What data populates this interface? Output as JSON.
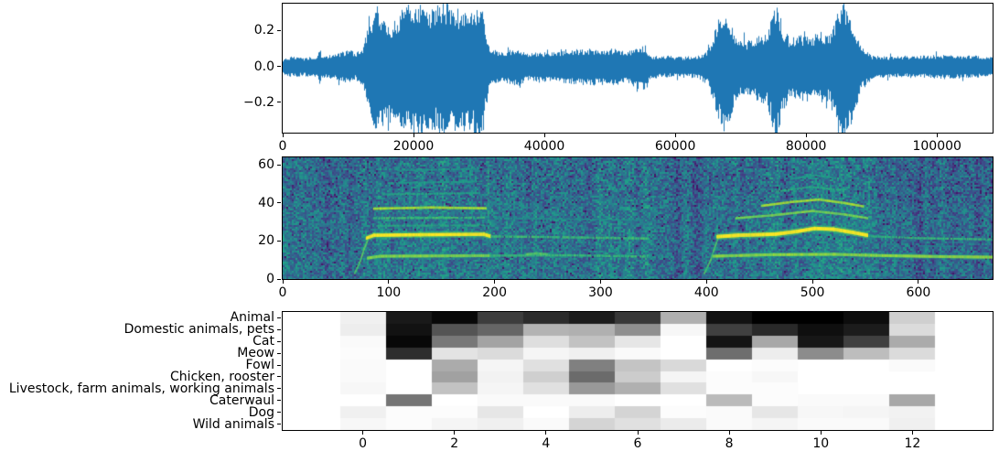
{
  "figure": {
    "background": "#ffffff"
  },
  "chart_data": [
    {
      "id": "waveform",
      "type": "line",
      "description": "audio waveform amplitude vs sample index",
      "line_color": "#1f77b4",
      "xlim": [
        0,
        108500
      ],
      "ylim": [
        -0.37,
        0.35
      ],
      "grid": false,
      "legend": null,
      "x_ticks": {
        "values": [
          0,
          20000,
          40000,
          60000,
          80000,
          100000
        ],
        "labels": [
          "0",
          "20000",
          "40000",
          "60000",
          "80000",
          "100000"
        ]
      },
      "y_ticks": {
        "values": [
          0.2,
          0.0,
          -0.2
        ],
        "labels": [
          "0.2",
          "0.0",
          "−0.2"
        ]
      },
      "envelope_points": [
        [
          0,
          0.035,
          0.04
        ],
        [
          1500,
          0.05,
          0.05
        ],
        [
          3000,
          0.04,
          0.045
        ],
        [
          5300,
          0.05,
          0.05
        ],
        [
          5600,
          0.1,
          0.11
        ],
        [
          5900,
          0.05,
          0.05
        ],
        [
          8000,
          0.055,
          0.06
        ],
        [
          10300,
          0.08,
          0.09
        ],
        [
          11000,
          0.06,
          0.06
        ],
        [
          12200,
          0.09,
          0.1
        ],
        [
          13200,
          0.2,
          0.24
        ],
        [
          14300,
          0.28,
          0.33
        ],
        [
          15500,
          0.22,
          0.26
        ],
        [
          16800,
          0.2,
          0.24
        ],
        [
          18000,
          0.26,
          0.28
        ],
        [
          19500,
          0.29,
          0.3
        ],
        [
          20800,
          0.3,
          0.35
        ],
        [
          22000,
          0.25,
          0.3
        ],
        [
          23500,
          0.28,
          0.28
        ],
        [
          25000,
          0.29,
          0.33
        ],
        [
          26500,
          0.26,
          0.3
        ],
        [
          28000,
          0.29,
          0.3
        ],
        [
          29500,
          0.27,
          0.32
        ],
        [
          30400,
          0.32,
          0.36
        ],
        [
          31000,
          0.15,
          0.18
        ],
        [
          31800,
          0.08,
          0.09
        ],
        [
          33500,
          0.065,
          0.07
        ],
        [
          36200,
          0.09,
          0.1
        ],
        [
          37000,
          0.06,
          0.065
        ],
        [
          39000,
          0.065,
          0.07
        ],
        [
          41500,
          0.07,
          0.075
        ],
        [
          44000,
          0.075,
          0.08
        ],
        [
          46500,
          0.085,
          0.09
        ],
        [
          48500,
          0.08,
          0.085
        ],
        [
          50500,
          0.085,
          0.09
        ],
        [
          52500,
          0.07,
          0.075
        ],
        [
          55300,
          0.1,
          0.12
        ],
        [
          56200,
          0.05,
          0.06
        ],
        [
          58500,
          0.05,
          0.05
        ],
        [
          61000,
          0.045,
          0.05
        ],
        [
          63500,
          0.05,
          0.055
        ],
        [
          65000,
          0.08,
          0.09
        ],
        [
          66300,
          0.2,
          0.22
        ],
        [
          67300,
          0.28,
          0.32
        ],
        [
          68400,
          0.2,
          0.24
        ],
        [
          69600,
          0.12,
          0.14
        ],
        [
          71000,
          0.12,
          0.13
        ],
        [
          72500,
          0.14,
          0.16
        ],
        [
          74000,
          0.16,
          0.18
        ],
        [
          75400,
          0.31,
          0.35
        ],
        [
          76400,
          0.18,
          0.22
        ],
        [
          77500,
          0.13,
          0.15
        ],
        [
          79000,
          0.15,
          0.17
        ],
        [
          80500,
          0.14,
          0.16
        ],
        [
          82000,
          0.16,
          0.17
        ],
        [
          83500,
          0.15,
          0.16
        ],
        [
          85400,
          0.31,
          0.36
        ],
        [
          86400,
          0.28,
          0.33
        ],
        [
          87500,
          0.15,
          0.2
        ],
        [
          88500,
          0.09,
          0.11
        ],
        [
          90000,
          0.05,
          0.06
        ],
        [
          93000,
          0.045,
          0.05
        ],
        [
          97000,
          0.05,
          0.05
        ],
        [
          101000,
          0.055,
          0.06
        ],
        [
          104500,
          0.05,
          0.055
        ],
        [
          108500,
          0.05,
          0.05
        ]
      ]
    },
    {
      "id": "spectrogram",
      "type": "heatmap",
      "description": "log-mel spectrogram, mel bands vs frame",
      "colormap": "viridis",
      "xlim": [
        0,
        670
      ],
      "ylim": [
        0,
        64
      ],
      "x_ticks": {
        "values": [
          0,
          100,
          200,
          300,
          400,
          500,
          600
        ],
        "labels": [
          "0",
          "100",
          "200",
          "300",
          "400",
          "500",
          "600"
        ]
      },
      "y_ticks": {
        "values": [
          0,
          20,
          40,
          60
        ],
        "labels": [
          "0",
          "20",
          "40",
          "60"
        ]
      },
      "background": {
        "base": 0.4,
        "noise": 0.17,
        "dark_regions": [
          [
            345,
            405
          ],
          [
            560,
            670
          ],
          [
            0,
            70
          ]
        ]
      },
      "harmonic_lines": [
        {
          "points": [
            [
              68,
              3
            ],
            [
              73,
              9
            ],
            [
              77,
              16
            ],
            [
              80,
              20
            ]
          ],
          "width": 2.0,
          "intensity": 0.72
        },
        {
          "points": [
            [
              79,
              21.5
            ],
            [
              86,
              23
            ],
            [
              130,
              23.3
            ],
            [
              190,
              23.5
            ],
            [
              196,
              22.5
            ]
          ],
          "width": 3.5,
          "intensity": 1.0
        },
        {
          "points": [
            [
              80,
              11
            ],
            [
              92,
              12
            ],
            [
              195,
              12.3
            ]
          ],
          "width": 3.0,
          "intensity": 0.8
        },
        {
          "points": [
            [
              196,
              22.4
            ],
            [
              260,
              22
            ],
            [
              345,
              21.3
            ]
          ],
          "width": 2.4,
          "intensity": 0.68
        },
        {
          "points": [
            [
              196,
              12.3
            ],
            [
              270,
              12.5
            ],
            [
              345,
              11.8
            ]
          ],
          "width": 2.4,
          "intensity": 0.66
        },
        {
          "points": [
            [
              86,
              37
            ],
            [
              140,
              37.6
            ],
            [
              192,
              37.2
            ]
          ],
          "width": 2.6,
          "intensity": 0.85
        },
        {
          "points": [
            [
              86,
              32
            ],
            [
              190,
              32.3
            ]
          ],
          "width": 2.2,
          "intensity": 0.68
        },
        {
          "points": [
            [
              90,
              28
            ],
            [
              190,
              28.2
            ]
          ],
          "width": 2.0,
          "intensity": 0.6
        },
        {
          "points": [
            [
              95,
              44.5
            ],
            [
              185,
              45.2
            ]
          ],
          "width": 2.0,
          "intensity": 0.58
        },
        {
          "points": [
            [
              100,
              50.5
            ],
            [
              188,
              51.3
            ]
          ],
          "width": 1.8,
          "intensity": 0.55
        },
        {
          "points": [
            [
              108,
              57
            ],
            [
              185,
              58
            ]
          ],
          "width": 1.8,
          "intensity": 0.52
        },
        {
          "points": [
            [
              230,
              13
            ],
            [
              240,
              13.5
            ],
            [
              250,
              13
            ]
          ],
          "width": 2.5,
          "intensity": 0.72
        },
        {
          "points": [
            [
              200,
              32
            ],
            [
              340,
              31
            ]
          ],
          "width": 1.6,
          "intensity": 0.5
        },
        {
          "points": [
            [
              398,
              3
            ],
            [
              404,
              10
            ],
            [
              408,
              17
            ],
            [
              411,
              21.5
            ]
          ],
          "width": 2.0,
          "intensity": 0.7
        },
        {
          "points": [
            [
              410,
              22.3
            ],
            [
              430,
              23
            ],
            [
              465,
              23.6
            ],
            [
              485,
              25
            ],
            [
              502,
              26.6
            ],
            [
              520,
              26.2
            ],
            [
              538,
              24.5
            ],
            [
              552,
              23
            ]
          ],
          "width": 3.8,
          "intensity": 1.0
        },
        {
          "points": [
            [
              406,
              12
            ],
            [
              460,
              12.8
            ],
            [
              520,
              13
            ],
            [
              560,
              12.4
            ],
            [
              620,
              11.8
            ],
            [
              670,
              11.5
            ]
          ],
          "width": 3.0,
          "intensity": 0.82
        },
        {
          "points": [
            [
              428,
              32
            ],
            [
              462,
              33.5
            ],
            [
              500,
              35.8
            ],
            [
              530,
              34
            ],
            [
              552,
              32
            ]
          ],
          "width": 2.4,
          "intensity": 0.78
        },
        {
          "points": [
            [
              452,
              38.5
            ],
            [
              480,
              40.5
            ],
            [
              506,
              41.8
            ],
            [
              530,
              40
            ],
            [
              548,
              38.2
            ]
          ],
          "width": 2.4,
          "intensity": 0.85
        },
        {
          "points": [
            [
              466,
              46
            ],
            [
              498,
              48.5
            ],
            [
              526,
              46.8
            ]
          ],
          "width": 2.0,
          "intensity": 0.6
        },
        {
          "points": [
            [
              478,
              52.5
            ],
            [
              504,
              54.5
            ],
            [
              522,
              53
            ]
          ],
          "width": 1.8,
          "intensity": 0.55
        },
        {
          "points": [
            [
              554,
              22.5
            ],
            [
              600,
              21.5
            ],
            [
              670,
              20.8
            ]
          ],
          "width": 2.2,
          "intensity": 0.66
        },
        {
          "points": [
            [
              600,
              17.5
            ],
            [
              640,
              17
            ]
          ],
          "width": 1.5,
          "intensity": 0.45
        }
      ],
      "vertical_streaks": [
        {
          "frame": 194,
          "intensity": 0.6
        },
        {
          "frame": 510,
          "intensity": 0.55
        }
      ]
    },
    {
      "id": "class_scores",
      "type": "heatmap",
      "description": "model class scores per frame (darker = higher score)",
      "colormap": "gray_r",
      "categories": [
        "Animal",
        "Domestic animals, pets",
        "Cat",
        "Meow",
        "Fowl",
        "Chicken, rooster",
        "Livestock, farm animals, working animals",
        "Caterwaul",
        "Dog",
        "Wild animals"
      ],
      "n_frames": 13,
      "xlim": [
        -1.75,
        13.75
      ],
      "x_ticks": {
        "values": [
          0,
          2,
          4,
          6,
          8,
          10,
          12
        ],
        "labels": [
          "0",
          "2",
          "4",
          "6",
          "8",
          "10",
          "12"
        ]
      },
      "values": [
        [
          0.06,
          0.9,
          0.97,
          0.76,
          0.83,
          0.89,
          0.78,
          0.31,
          0.93,
          1.0,
          1.0,
          0.95,
          0.19
        ],
        [
          0.07,
          0.93,
          0.67,
          0.6,
          0.3,
          0.31,
          0.44,
          0.03,
          0.75,
          0.84,
          0.94,
          0.89,
          0.14
        ],
        [
          0.02,
          0.97,
          0.53,
          0.36,
          0.13,
          0.24,
          0.1,
          0.0,
          0.92,
          0.34,
          0.91,
          0.75,
          0.33
        ],
        [
          0.01,
          0.82,
          0.11,
          0.14,
          0.04,
          0.06,
          0.02,
          0.0,
          0.57,
          0.07,
          0.45,
          0.26,
          0.14
        ],
        [
          0.02,
          0.0,
          0.33,
          0.04,
          0.12,
          0.5,
          0.23,
          0.15,
          0.0,
          0.01,
          0.0,
          0.0,
          0.02
        ],
        [
          0.02,
          0.0,
          0.37,
          0.05,
          0.19,
          0.58,
          0.2,
          0.04,
          0.01,
          0.03,
          0.0,
          0.0,
          0.0
        ],
        [
          0.03,
          0.0,
          0.24,
          0.04,
          0.12,
          0.4,
          0.31,
          0.12,
          0.01,
          0.01,
          0.0,
          0.0,
          0.0
        ],
        [
          0.0,
          0.54,
          0.0,
          0.02,
          0.02,
          0.02,
          0.0,
          0.0,
          0.27,
          0.01,
          0.02,
          0.02,
          0.34
        ],
        [
          0.06,
          0.01,
          0.01,
          0.1,
          0.0,
          0.07,
          0.17,
          0.01,
          0.02,
          0.1,
          0.03,
          0.04,
          0.05
        ],
        [
          0.03,
          0.01,
          0.04,
          0.06,
          0.02,
          0.17,
          0.12,
          0.08,
          0.02,
          0.04,
          0.02,
          0.02,
          0.06
        ]
      ]
    }
  ]
}
